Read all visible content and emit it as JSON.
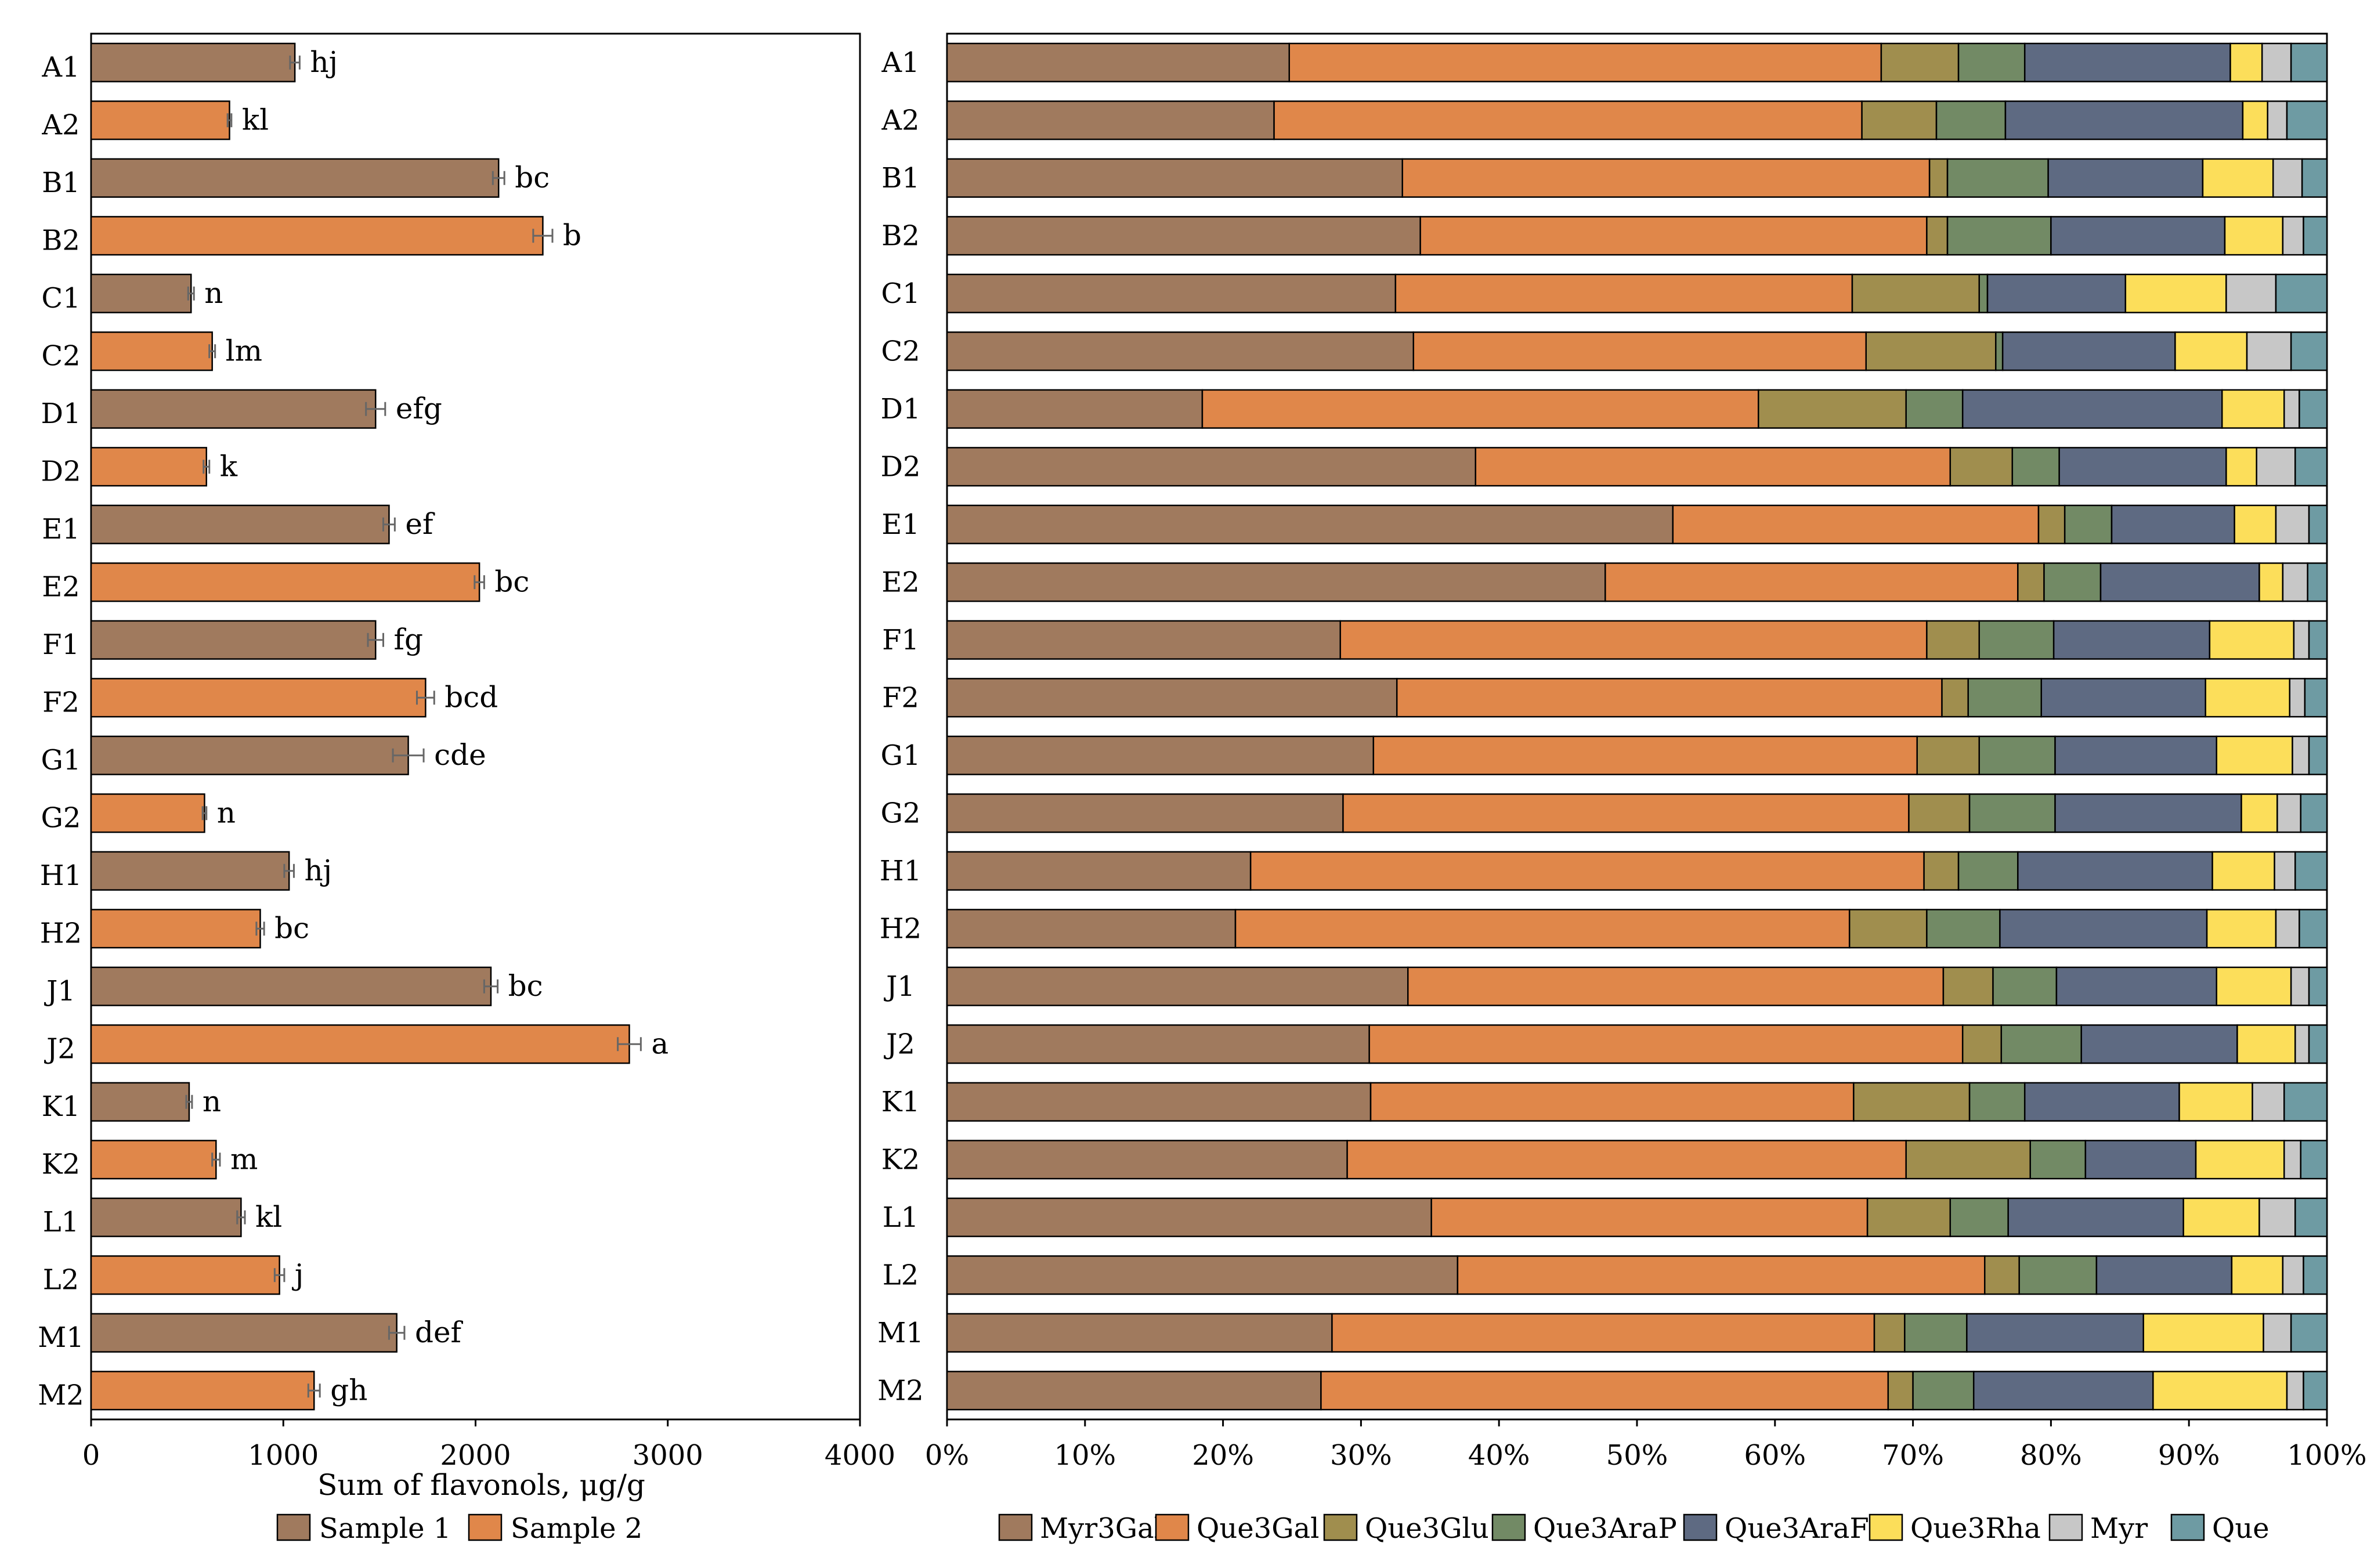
{
  "colors": {
    "sample1": "#a07a5e",
    "sample2": "#e0874a",
    "Myr3Gal": "#a07a5e",
    "Que3Gal": "#e0874a",
    "Que3Glu": "#a08e4e",
    "Que3AraP": "#728a65",
    "Que3AraF": "#5e6a82",
    "Que3Rha": "#fcde5a",
    "Myr": "#c7c7c7",
    "Que": "#6e9ba3"
  },
  "chart_data": [
    {
      "type": "bar",
      "orientation": "horizontal",
      "categories": [
        "A1",
        "A2",
        "B1",
        "B2",
        "C1",
        "C2",
        "D1",
        "D2",
        "E1",
        "E2",
        "F1",
        "F2",
        "G1",
        "G2",
        "H1",
        "H2",
        "J1",
        "J2",
        "K1",
        "K2",
        "L1",
        "L2",
        "M1",
        "M2"
      ],
      "values": [
        1060,
        720,
        2120,
        2350,
        520,
        630,
        1480,
        600,
        1550,
        2020,
        1480,
        1740,
        1650,
        590,
        1030,
        880,
        2080,
        2800,
        510,
        650,
        780,
        980,
        1590,
        1160
      ],
      "errors": [
        25,
        10,
        30,
        50,
        15,
        15,
        50,
        15,
        30,
        25,
        40,
        45,
        80,
        10,
        25,
        20,
        35,
        60,
        15,
        20,
        20,
        25,
        40,
        30
      ],
      "significance": [
        "hj",
        "kl",
        "bc",
        "b",
        "n",
        "lm",
        "efg",
        "k",
        "ef",
        "bc",
        "fg",
        "bcd",
        "cde",
        "n",
        "hj",
        "bc",
        "bc",
        "a",
        "n",
        "m",
        "kl",
        "j",
        "def",
        "gh"
      ],
      "series_for_category": [
        "Sample 1",
        "Sample 2",
        "Sample 1",
        "Sample 2",
        "Sample 1",
        "Sample 2",
        "Sample 1",
        "Sample 2",
        "Sample 1",
        "Sample 2",
        "Sample 1",
        "Sample 2",
        "Sample 1",
        "Sample 2",
        "Sample 1",
        "Sample 2",
        "Sample 1",
        "Sample 2",
        "Sample 1",
        "Sample 2",
        "Sample 1",
        "Sample 2",
        "Sample 1",
        "Sample 2"
      ],
      "xlabel": "Sum of flavonols, μg/g",
      "xlim": [
        0,
        4000
      ],
      "xticks": [
        "0",
        "1000",
        "2000",
        "3000",
        "4000"
      ],
      "legend": [
        "Sample 1",
        "Sample 2"
      ],
      "legend_position": "bottom",
      "grid": false
    },
    {
      "type": "bar",
      "orientation": "horizontal",
      "stacked": "percent",
      "categories": [
        "A1",
        "A2",
        "B1",
        "B2",
        "C1",
        "C2",
        "D1",
        "D2",
        "E1",
        "E2",
        "F1",
        "F2",
        "G1",
        "G2",
        "H1",
        "H2",
        "J1",
        "J2",
        "K1",
        "K2",
        "L1",
        "L2",
        "M1",
        "M2"
      ],
      "series": [
        {
          "name": "Myr3Gal",
          "values": [
            24.8,
            23.7,
            33.0,
            34.3,
            32.5,
            33.8,
            18.5,
            38.3,
            52.6,
            47.7,
            28.5,
            32.6,
            30.9,
            28.7,
            22.0,
            20.9,
            33.4,
            30.6,
            30.7,
            29.0,
            35.1,
            37.0,
            27.9,
            27.1
          ]
        },
        {
          "name": "Que3Gal",
          "values": [
            42.9,
            42.6,
            38.2,
            36.7,
            33.1,
            32.8,
            40.3,
            34.4,
            26.5,
            29.9,
            42.5,
            39.5,
            39.4,
            41.0,
            48.8,
            44.5,
            38.8,
            43.0,
            35.0,
            40.5,
            31.6,
            38.2,
            39.3,
            41.1
          ]
        },
        {
          "name": "Que3Glu",
          "values": [
            5.6,
            5.4,
            1.3,
            1.5,
            9.2,
            9.4,
            10.7,
            4.5,
            1.9,
            1.9,
            3.8,
            1.9,
            4.5,
            4.4,
            2.5,
            5.6,
            3.6,
            2.8,
            8.4,
            9.0,
            6.0,
            2.5,
            2.2,
            1.8
          ]
        },
        {
          "name": "Que3AraP",
          "values": [
            4.8,
            5.0,
            7.3,
            7.5,
            0.6,
            0.5,
            4.1,
            3.4,
            3.4,
            4.1,
            5.4,
            5.3,
            5.5,
            6.2,
            4.3,
            5.3,
            4.6,
            5.8,
            4.0,
            4.0,
            4.2,
            5.6,
            4.5,
            4.4
          ]
        },
        {
          "name": "Que3AraF",
          "values": [
            14.9,
            17.2,
            11.2,
            12.6,
            10.0,
            12.5,
            18.8,
            12.1,
            8.9,
            11.5,
            11.3,
            11.9,
            11.7,
            13.5,
            14.1,
            15.0,
            11.6,
            11.3,
            11.2,
            8.0,
            12.7,
            9.8,
            12.8,
            13.0
          ]
        },
        {
          "name": "Que3Rha",
          "values": [
            2.3,
            1.8,
            5.1,
            4.2,
            7.3,
            5.2,
            4.5,
            2.2,
            3.0,
            1.7,
            6.1,
            6.1,
            5.5,
            2.6,
            4.5,
            5.0,
            5.4,
            4.2,
            5.3,
            6.4,
            5.5,
            3.7,
            8.7,
            9.7
          ]
        },
        {
          "name": "Myr",
          "values": [
            2.1,
            1.4,
            2.1,
            1.5,
            3.6,
            3.2,
            1.1,
            2.8,
            2.4,
            1.8,
            1.1,
            1.1,
            1.2,
            1.7,
            1.5,
            1.7,
            1.3,
            1.0,
            2.3,
            1.2,
            2.6,
            1.5,
            2.0,
            1.2
          ]
        },
        {
          "name": "Que",
          "values": [
            2.6,
            2.9,
            1.8,
            1.7,
            3.7,
            2.6,
            2.0,
            2.3,
            1.3,
            1.4,
            1.3,
            1.6,
            1.3,
            1.9,
            2.3,
            2.0,
            1.3,
            1.3,
            3.1,
            1.9,
            2.3,
            1.7,
            2.6,
            1.7
          ]
        }
      ],
      "xlim": [
        0,
        100
      ],
      "xticks": [
        "0%",
        "10%",
        "20%",
        "30%",
        "40%",
        "50%",
        "60%",
        "70%",
        "80%",
        "90%",
        "100%"
      ],
      "legend_position": "bottom",
      "grid": false
    }
  ]
}
